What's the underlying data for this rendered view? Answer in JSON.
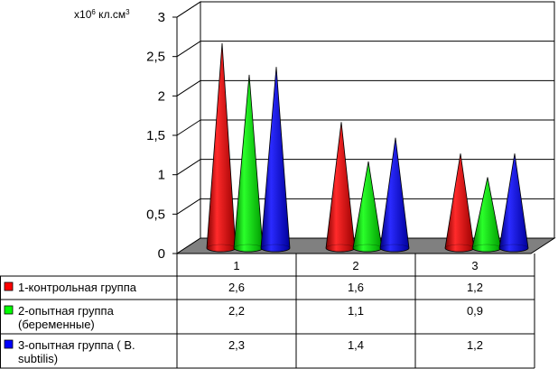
{
  "chart_data": {
    "type": "bar",
    "ylabel": "x10⁶ кл.см³",
    "ylim": [
      0,
      3
    ],
    "yticks": [
      "0",
      "0,5",
      "1",
      "1,5",
      "2",
      "2,5",
      "3"
    ],
    "categories": [
      "1",
      "2",
      "3"
    ],
    "grid": true,
    "legend": "table-left",
    "series": [
      {
        "name": "1-контрольная группа",
        "name_lines": [
          "1-контрольная группа"
        ],
        "color": "#ff0000",
        "values": [
          2.6,
          1.6,
          1.2
        ],
        "labels": [
          "2,6",
          "1,6",
          "1,2"
        ]
      },
      {
        "name": "2-опытная группа (беременные)",
        "name_lines": [
          "2-опытная группа",
          "(беременные)"
        ],
        "color": "#00ff00",
        "values": [
          2.2,
          1.1,
          0.9
        ],
        "labels": [
          "2,2",
          "1,1",
          "0,9"
        ]
      },
      {
        "name": "3-опытная группа ( B. subtilis)",
        "name_lines": [
          "3-опытная группа ( B.",
          "subtilis)"
        ],
        "color": "#0000ff",
        "values": [
          2.3,
          1.4,
          1.2
        ],
        "labels": [
          "2,3",
          "1,4",
          "1,2"
        ]
      }
    ]
  }
}
